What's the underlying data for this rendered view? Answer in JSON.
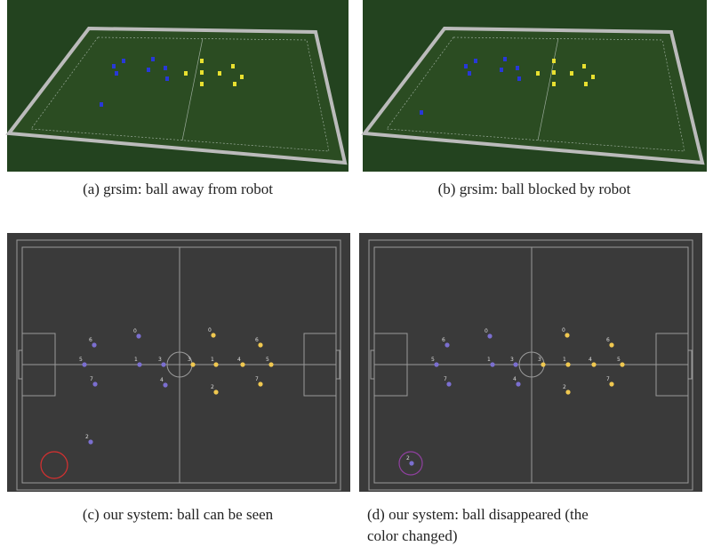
{
  "panels": [
    {
      "caption": "(a) grsim: ball away from robot"
    },
    {
      "caption": "(b) grsim: ball blocked by robot"
    },
    {
      "caption": "(c) our system: ball can be seen",
      "blue_robots": [
        "6",
        "5",
        "7",
        "0",
        "1",
        "3",
        "4",
        "2"
      ],
      "yellow_robots": [
        "0",
        "6",
        "3",
        "1",
        "4",
        "5",
        "2",
        "7"
      ]
    },
    {
      "caption": [
        "(d) our system: ball disappeared (the",
        "color changed)"
      ],
      "blue_robots": [
        "6",
        "5",
        "7",
        "0",
        "1",
        "3",
        "4",
        "2"
      ],
      "yellow_robots": [
        "0",
        "6",
        "3",
        "1",
        "4",
        "5",
        "2",
        "7"
      ]
    }
  ]
}
